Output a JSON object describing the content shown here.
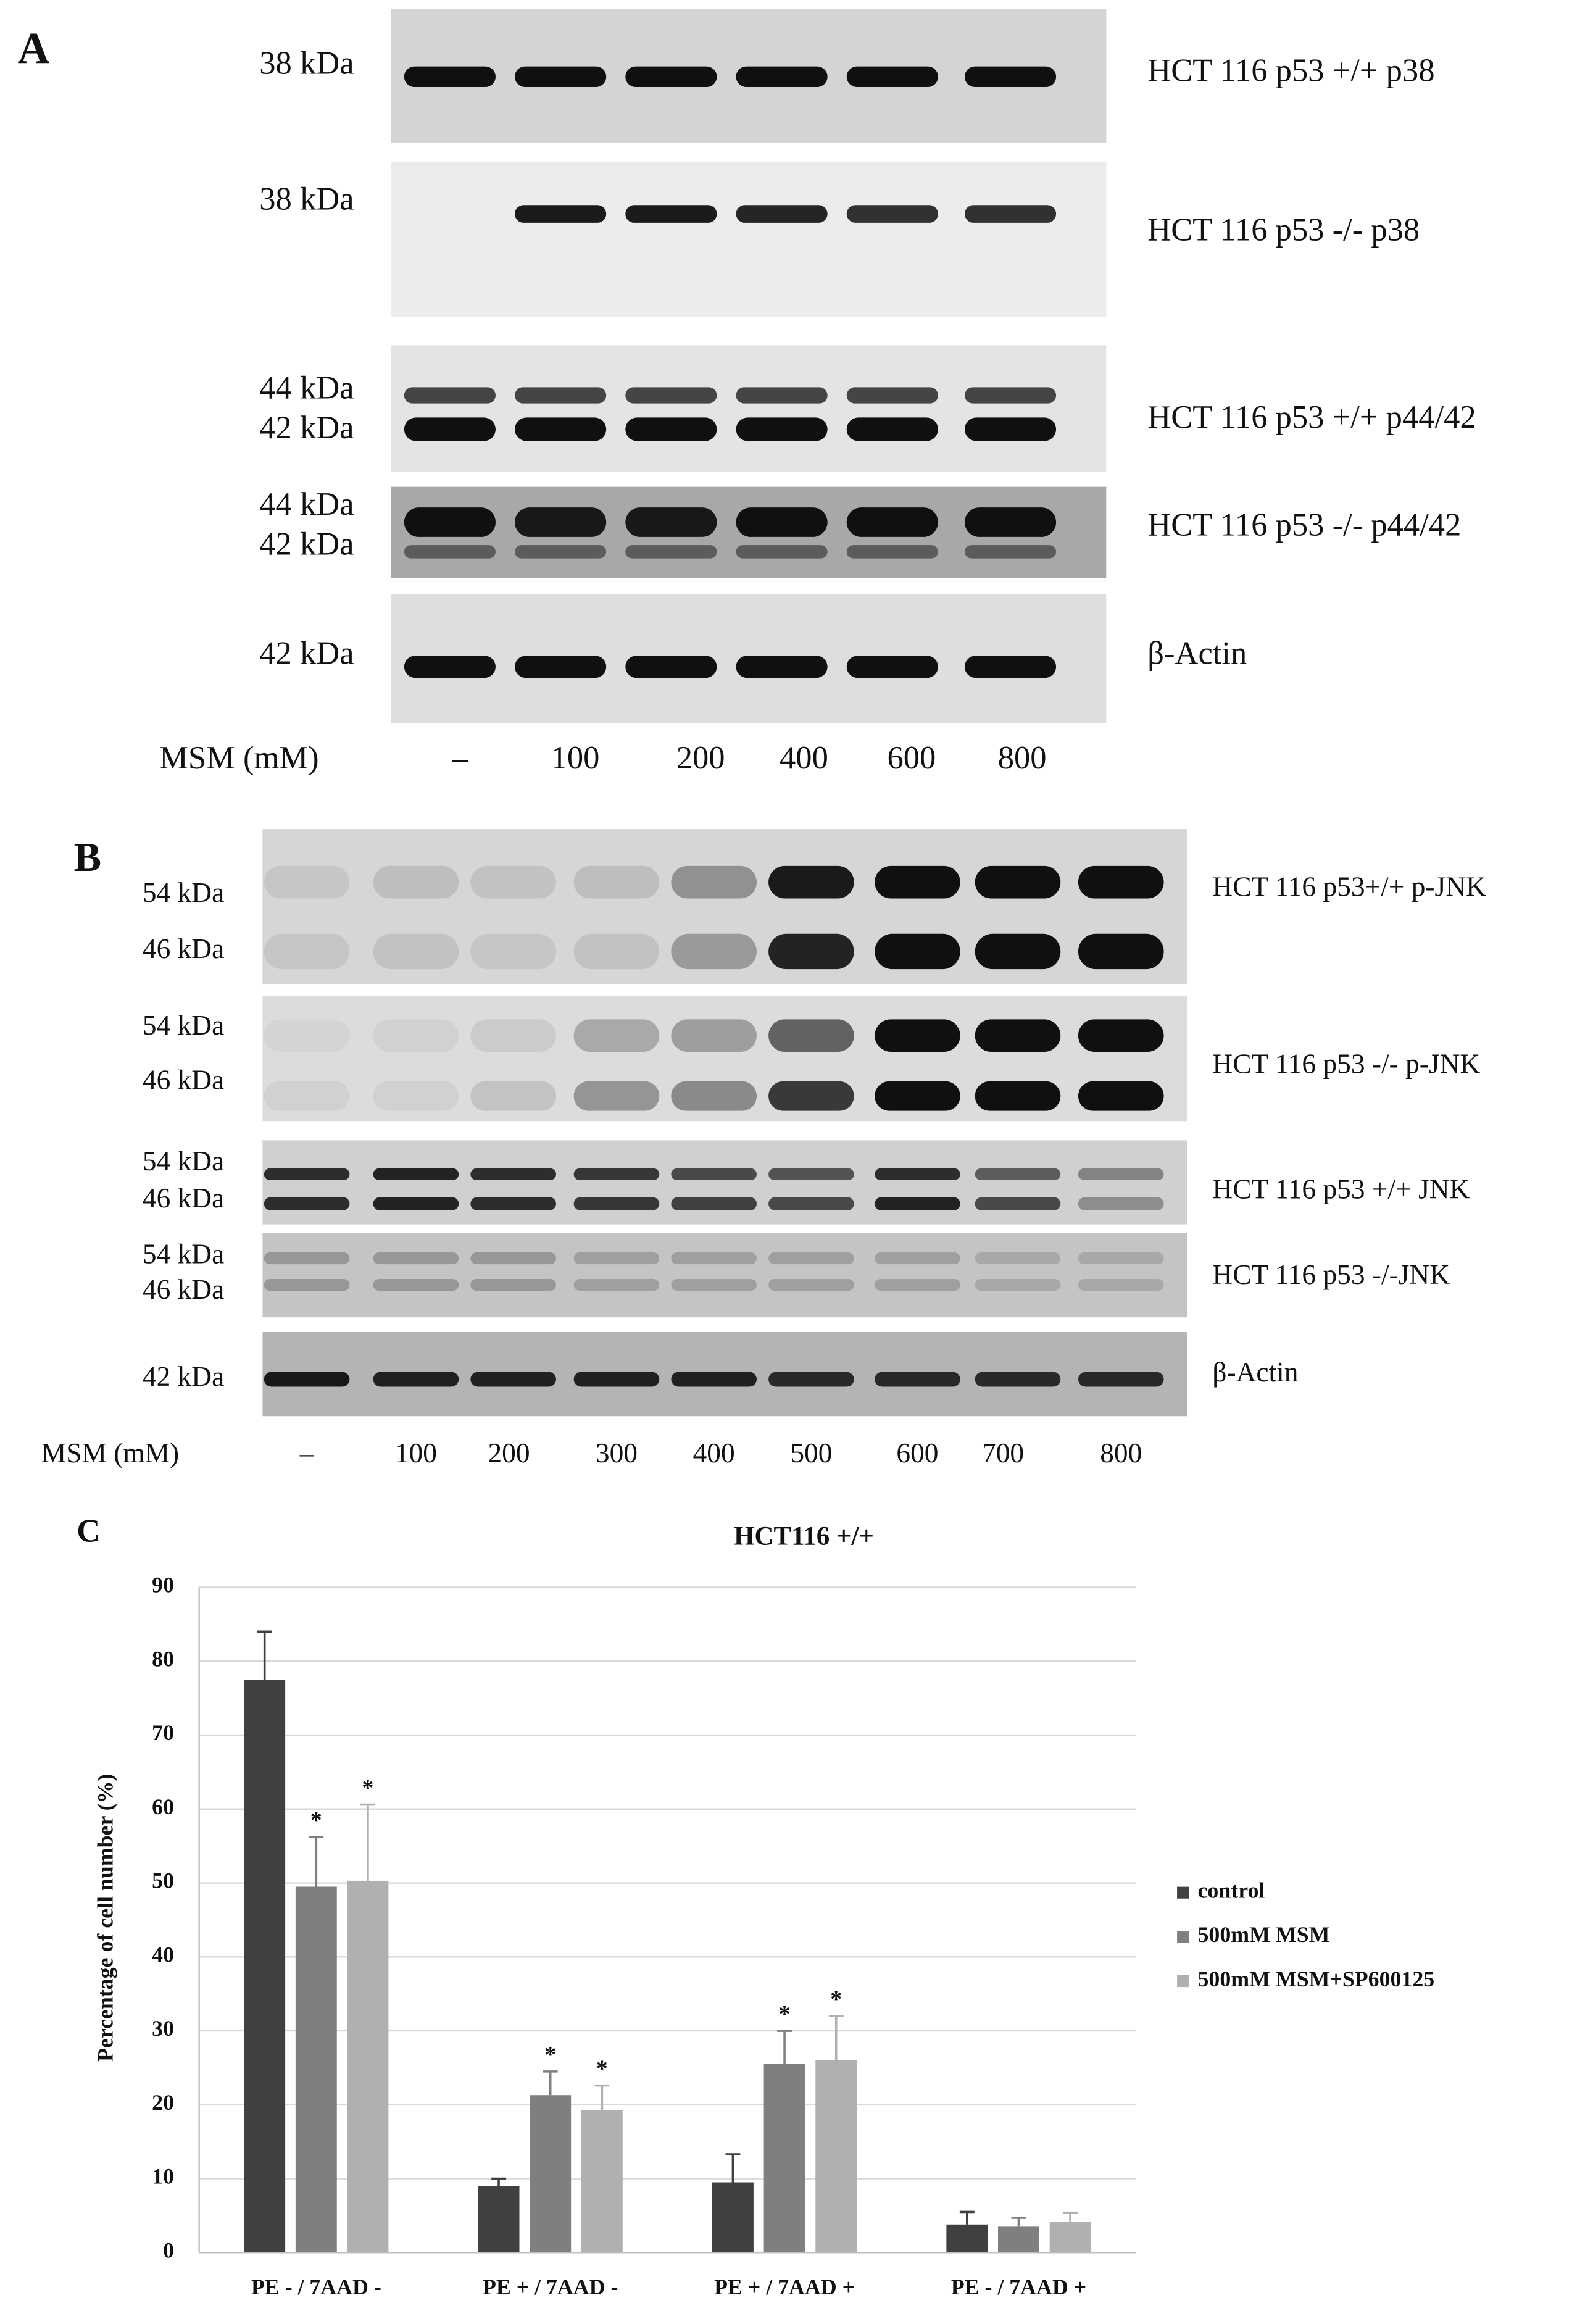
{
  "panel_a": {
    "label": "A",
    "treatment_label": "MSM (mM)",
    "doses": [
      "–",
      "100",
      "200",
      "400",
      "600",
      "800"
    ],
    "blots": [
      {
        "markers": [
          "38 kDa"
        ],
        "name": "HCT 116 p53 +/+ p38"
      },
      {
        "markers": [
          "38 kDa"
        ],
        "name": "HCT 116 p53 -/- p38"
      },
      {
        "markers": [
          "44 kDa",
          "42 kDa"
        ],
        "name": "HCT 116 p53 +/+ p44/42"
      },
      {
        "markers": [
          "44 kDa",
          "42 kDa"
        ],
        "name": "HCT 116 p53 -/- p44/42"
      },
      {
        "markers": [
          "42 kDa"
        ],
        "name": "β-Actin"
      }
    ]
  },
  "panel_b": {
    "label": "B",
    "treatment_label": "MSM (mM)",
    "doses": [
      "–",
      "100",
      "200",
      "300",
      "400",
      "500",
      "600",
      "700",
      "800"
    ],
    "blots": [
      {
        "markers": [
          "54 kDa",
          "46 kDa"
        ],
        "name": "HCT 116 p53+/+ p-JNK"
      },
      {
        "markers": [
          "54 kDa",
          "46 kDa"
        ],
        "name": "HCT 116 p53 -/- p-JNK"
      },
      {
        "markers": [
          "54 kDa",
          "46 kDa"
        ],
        "name": "HCT 116 p53 +/+ JNK"
      },
      {
        "markers": [
          "54 kDa",
          "46 kDa"
        ],
        "name": "HCT 116 p53 -/-JNK"
      },
      {
        "markers": [
          "42 kDa"
        ],
        "name": "β-Actin"
      }
    ]
  },
  "chart_data": {
    "type": "bar",
    "panel_label": "C",
    "title": "HCT116 +/+",
    "y_label": "Percentage of cell number (%)",
    "categories": [
      "PE - / 7AAD -",
      "PE + / 7AAD -",
      "PE + / 7AAD +",
      "PE - / 7AAD +"
    ],
    "series": [
      {
        "name": "control",
        "color": "#404040",
        "values": [
          77.5,
          9,
          9.5,
          3.8
        ],
        "errors": [
          6.5,
          1,
          3.8,
          1.7
        ]
      },
      {
        "name": "500mM MSM",
        "color": "#7f7f7f",
        "values": [
          49.5,
          21.3,
          25.5,
          3.5
        ],
        "errors": [
          6.7,
          3.2,
          4.5,
          1.2
        ],
        "markers": [
          "*",
          "*",
          "*",
          null
        ]
      },
      {
        "name": "500mM MSM+SP600125",
        "color": "#b0b0b0",
        "values": [
          50.3,
          19.3,
          26,
          4.2
        ],
        "errors": [
          10.3,
          3.3,
          6,
          1.2
        ],
        "markers": [
          "*",
          "*",
          "*",
          null
        ]
      }
    ],
    "ylim": [
      0,
      90
    ],
    "yticks": [
      0,
      10,
      20,
      30,
      40,
      50,
      60,
      70,
      80,
      90
    ],
    "grid": true,
    "legend": "right"
  }
}
